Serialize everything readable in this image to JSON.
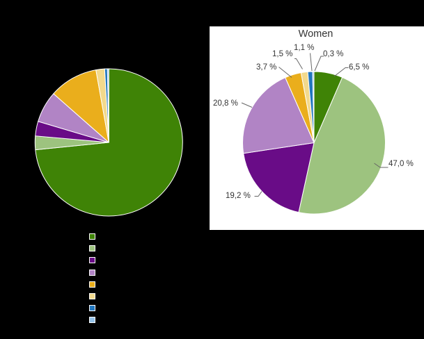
{
  "canvas": {
    "background": "#000000",
    "panel_background": "#ffffff"
  },
  "palette": {
    "dark_green": "#3F8306",
    "light_green": "#9DC37F",
    "dark_purple": "#690C87",
    "orchid": "#B184C5",
    "gold": "#EAAE1C",
    "pale_yellow": "#F2D98C",
    "blue": "#2176BE",
    "light_blue": "#95C2E8",
    "leader_line": "#666666",
    "text": "#333333",
    "slice_border": "#ffffff"
  },
  "legend": {
    "swatches": [
      {
        "name": "dark-green",
        "color": "#3F8306"
      },
      {
        "name": "light-green",
        "color": "#9DC37F"
      },
      {
        "name": "dark-purple",
        "color": "#690C87"
      },
      {
        "name": "orchid",
        "color": "#B184C5"
      },
      {
        "name": "gold",
        "color": "#EAAE1C"
      },
      {
        "name": "pale-yellow",
        "color": "#F2D98C"
      },
      {
        "name": "blue",
        "color": "#2176BE"
      },
      {
        "name": "light-blue",
        "color": "#95C2E8"
      }
    ]
  },
  "chart_data": [
    {
      "type": "pie",
      "id": "left-pie",
      "slices": [
        {
          "name": "dark-green",
          "value": 73.4,
          "color": "#3F8306"
        },
        {
          "name": "light-green",
          "value": 3.0,
          "color": "#9DC37F"
        },
        {
          "name": "dark-purple",
          "value": 3.2,
          "color": "#690C87"
        },
        {
          "name": "orchid",
          "value": 6.9,
          "color": "#B184C5"
        },
        {
          "name": "gold",
          "value": 10.7,
          "color": "#EAAE1C"
        },
        {
          "name": "pale-yellow",
          "value": 1.9,
          "color": "#F2D98C"
        },
        {
          "name": "blue",
          "value": 0.6,
          "color": "#2176BE"
        },
        {
          "name": "light-blue",
          "value": 0.3,
          "color": "#95C2E8"
        }
      ]
    },
    {
      "type": "pie",
      "id": "women-pie",
      "title": "Women",
      "slices": [
        {
          "name": "dark-green",
          "value": 6.5,
          "label": "6,5 %",
          "color": "#3F8306"
        },
        {
          "name": "light-green",
          "value": 47.0,
          "label": "47,0 %",
          "color": "#9DC37F"
        },
        {
          "name": "dark-purple",
          "value": 19.2,
          "label": "19,2 %",
          "color": "#690C87"
        },
        {
          "name": "orchid",
          "value": 20.8,
          "label": "20,8 %",
          "color": "#B184C5"
        },
        {
          "name": "gold",
          "value": 3.7,
          "label": "3,7 %",
          "color": "#EAAE1C"
        },
        {
          "name": "pale-yellow",
          "value": 1.5,
          "label": "1,5 %",
          "color": "#F2D98C"
        },
        {
          "name": "blue",
          "value": 1.1,
          "label": "1,1 %",
          "color": "#2176BE"
        },
        {
          "name": "light-blue",
          "value": 0.3,
          "label": "0,3 %",
          "color": "#95C2E8"
        }
      ]
    }
  ]
}
